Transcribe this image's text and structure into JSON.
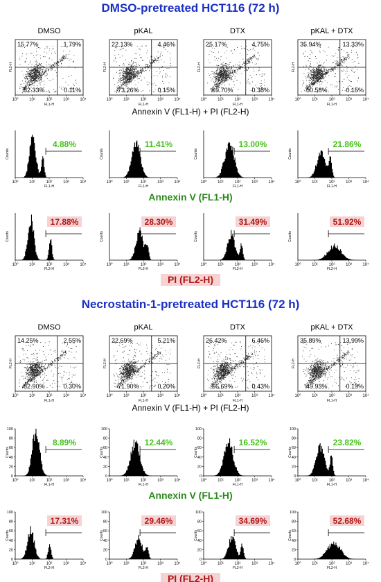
{
  "colors": {
    "title": "#1a2fc4",
    "annexin": "#2a8a1a",
    "pi": "#b01616",
    "annexin_value": "#44c21a",
    "pi_value_bg": "#f6d2d2"
  },
  "scatter_row_label": "Annexin V (FL1-H) + PI (FL2-H)",
  "annexin_row_label": "Annexin V (FL1-H)",
  "pi_row_label": "PI (FL2-H)",
  "axis_text": {
    "fl1": "FL1-H",
    "fl2": "FL2-H",
    "counts": "Counts"
  },
  "chart_data": [
    {
      "type": "scatter",
      "title": "DMSO-pretreated HCT116 (72 h)",
      "xlabel": "FL1-H",
      "ylabel": "FL2-H",
      "log_scale": true,
      "xlim": [
        1,
        10000
      ],
      "ylim": [
        1,
        10000
      ],
      "x_ticks": [
        "10⁰",
        "10¹",
        "10²",
        "10³",
        "10⁴"
      ],
      "panels": [
        {
          "name": "DMSO",
          "quadrants": {
            "ul": "15.77%",
            "ur": "1.79%",
            "ll": "82.33%",
            "lr": "0.11%"
          }
        },
        {
          "name": "pKAL",
          "quadrants": {
            "ul": "22.13%",
            "ur": "4.46%",
            "ll": "73.26%",
            "lr": "0.15%"
          }
        },
        {
          "name": "DTX",
          "quadrants": {
            "ul": "25.17%",
            "ur": "4.75%",
            "ll": "69.70%",
            "lr": "0.38%"
          }
        },
        {
          "name": "pKAL + DTX",
          "quadrants": {
            "ul": "35.94%",
            "ur": "13.33%",
            "ll": "50.58%",
            "lr": "0.15%"
          }
        }
      ]
    },
    {
      "type": "histogram",
      "xlabel": "FL1-H",
      "ylabel": "Counts",
      "log_scale": true,
      "xlim": [
        1,
        10000
      ],
      "x_ticks": [
        "10⁰",
        "10¹",
        "10²",
        "10³",
        "10⁴"
      ],
      "panels": [
        {
          "value": "4.88%",
          "peak_log": 1.0,
          "width": 0.25,
          "height": 0.95,
          "second_peak_log": 1.6,
          "second_height": 0.4
        },
        {
          "value": "11.41%",
          "peak_log": 1.55,
          "width": 0.35,
          "height": 0.75
        },
        {
          "value": "13.00%",
          "peak_log": 1.5,
          "width": 0.38,
          "height": 0.75
        },
        {
          "value": "21.86%",
          "peak_log": 1.35,
          "width": 0.35,
          "height": 0.55,
          "second_peak_log": 1.9,
          "second_height": 0.35
        }
      ]
    },
    {
      "type": "histogram",
      "xlabel": "FL2-H",
      "ylabel": "Counts",
      "log_scale": true,
      "xlim": [
        1,
        10000
      ],
      "x_ticks": [
        "10⁰",
        "10¹",
        "10²",
        "10³",
        "10⁴"
      ],
      "panels": [
        {
          "value": "17.88%",
          "peak_log": 0.9,
          "width": 0.25,
          "height": 0.85,
          "second_peak_log": 2.05,
          "second_height": 0.45
        },
        {
          "value": "28.30%",
          "peak_log": 1.75,
          "width": 0.3,
          "height": 0.6,
          "second_peak_log": 2.2,
          "second_height": 0.3
        },
        {
          "value": "31.49%",
          "peak_log": 1.6,
          "width": 0.3,
          "height": 0.55,
          "second_peak_log": 2.2,
          "second_height": 0.35
        },
        {
          "value": "51.92%",
          "peak_log": 2.15,
          "width": 0.55,
          "height": 0.3
        }
      ]
    },
    {
      "type": "scatter",
      "title": "Necrostatin-1-pretreated HCT116 (72 h)",
      "xlabel": "FL1-H",
      "ylabel": "FL2-H",
      "log_scale": true,
      "xlim": [
        1,
        10000
      ],
      "ylim": [
        1,
        10000
      ],
      "x_ticks": [
        "10⁰",
        "10¹",
        "10²",
        "10³",
        "10⁴"
      ],
      "panels": [
        {
          "name": "DMSO",
          "quadrants": {
            "ul": "14.25%",
            "ur": "2.55%",
            "ll": "82.90%",
            "lr": "0.30%"
          }
        },
        {
          "name": "pKAL",
          "quadrants": {
            "ul": "22.69%",
            "ur": "5.21%",
            "ll": "71.90%",
            "lr": "0.20%"
          }
        },
        {
          "name": "DTX",
          "quadrants": {
            "ul": "26.42%",
            "ur": "6.46%",
            "ll": "66.69%",
            "lr": "0.43%"
          }
        },
        {
          "name": "pKAL + DTX",
          "quadrants": {
            "ul": "35.89%",
            "ur": "13.99%",
            "ll": "49.93%",
            "lr": "0.19%"
          }
        }
      ]
    },
    {
      "type": "histogram",
      "xlabel": "FL1-H",
      "ylabel": "Counts",
      "log_scale": true,
      "xlim": [
        1,
        10000
      ],
      "y_ticks": [
        "0",
        "20",
        "40",
        "60",
        "80",
        "100"
      ],
      "x_ticks": [
        "10⁰",
        "10¹",
        "10²",
        "10³",
        "10⁴"
      ],
      "panels": [
        {
          "value": "8.89%",
          "peak_log": 1.2,
          "width": 0.3,
          "height": 0.95
        },
        {
          "value": "12.44%",
          "peak_log": 1.5,
          "width": 0.38,
          "height": 0.7
        },
        {
          "value": "16.52%",
          "peak_log": 1.45,
          "width": 0.38,
          "height": 0.7
        },
        {
          "value": "23.82%",
          "peak_log": 1.3,
          "width": 0.35,
          "height": 0.6,
          "second_peak_log": 1.95,
          "second_height": 0.4
        }
      ]
    },
    {
      "type": "histogram",
      "xlabel": "FL2-H",
      "ylabel": "Counts",
      "log_scale": true,
      "xlim": [
        1,
        10000
      ],
      "y_ticks": [
        "0",
        "20",
        "40",
        "60",
        "80",
        "100"
      ],
      "x_ticks": [
        "10⁰",
        "10¹",
        "10²",
        "10³",
        "10⁴"
      ],
      "panels": [
        {
          "value": "17.31%",
          "peak_log": 0.9,
          "width": 0.28,
          "height": 0.6,
          "second_peak_log": 2.0,
          "second_height": 0.3
        },
        {
          "value": "29.46%",
          "peak_log": 1.7,
          "width": 0.3,
          "height": 0.45,
          "second_peak_log": 2.2,
          "second_height": 0.25
        },
        {
          "value": "34.69%",
          "peak_log": 1.65,
          "width": 0.3,
          "height": 0.45,
          "second_peak_log": 2.25,
          "second_height": 0.3
        },
        {
          "value": "52.68%",
          "peak_log": 2.1,
          "width": 0.55,
          "height": 0.35
        }
      ]
    }
  ]
}
